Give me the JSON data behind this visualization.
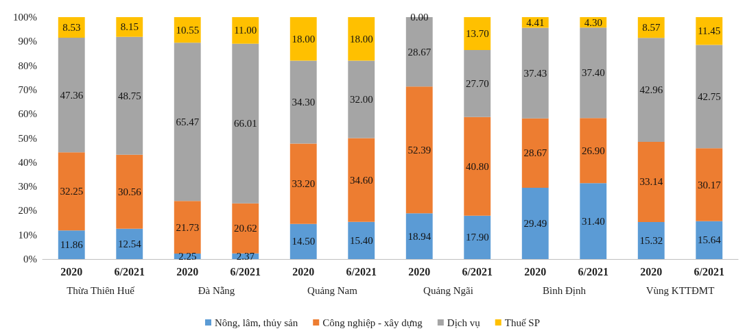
{
  "chart_data": {
    "type": "bar",
    "stacked": true,
    "categories": [
      "2020",
      "6/2021",
      "2020",
      "6/2021",
      "2020",
      "6/2021",
      "2020",
      "6/2021",
      "2020",
      "6/2021",
      "2020",
      "6/2021"
    ],
    "annotations": [
      "Thừa Thiên Huế",
      "Đà Nẵng",
      "Quảng Nam",
      "Quảng Ngãi",
      "Bình Định",
      "Vùng KTTĐMT"
    ],
    "ylim": [
      0,
      100
    ],
    "yticks": [
      {
        "value": 0,
        "label": "0%"
      },
      {
        "value": 10,
        "label": "10%"
      },
      {
        "value": 20,
        "label": "20%"
      },
      {
        "value": 30,
        "label": "30%"
      },
      {
        "value": 40,
        "label": "40%"
      },
      {
        "value": 50,
        "label": "50%"
      },
      {
        "value": 60,
        "label": "60%"
      },
      {
        "value": 70,
        "label": "70%"
      },
      {
        "value": 80,
        "label": "80%"
      },
      {
        "value": 90,
        "label": "90%"
      },
      {
        "value": 100,
        "label": "100%"
      }
    ],
    "grid": false,
    "legend": "bottom",
    "series": [
      {
        "name": "Nông, lâm, thủy sản",
        "color": "#5b9bd5",
        "values": [
          11.86,
          12.54,
          2.25,
          2.37,
          14.5,
          15.4,
          18.94,
          17.9,
          29.49,
          31.4,
          15.32,
          15.64
        ],
        "value_labels": [
          "11.86",
          "12.54",
          "2.25",
          "2.37",
          "14.50",
          "15.40",
          "18.94",
          "17.90",
          "29.49",
          "31.40",
          "15.32",
          "15.64"
        ]
      },
      {
        "name": "Công nghiệp - xây dựng",
        "color": "#ed7d31",
        "values": [
          32.25,
          30.56,
          21.73,
          20.62,
          33.2,
          34.6,
          52.39,
          40.8,
          28.67,
          26.9,
          33.14,
          30.17
        ],
        "value_labels": [
          "32.25",
          "30.56",
          "21.73",
          "20.62",
          "33.20",
          "34.60",
          "52.39",
          "40.80",
          "28.67",
          "26.90",
          "33.14",
          "30.17"
        ]
      },
      {
        "name": "Dịch vụ",
        "color": "#a5a5a5",
        "values": [
          47.36,
          48.75,
          65.47,
          66.01,
          34.3,
          32,
          28.67,
          27.7,
          37.43,
          37.4,
          42.96,
          42.75
        ],
        "value_labels": [
          "47.36",
          "48.75",
          "65.47",
          "66.01",
          "34.30",
          "32.00",
          "28.67",
          "27.70",
          "37.43",
          "37.40",
          "42.96",
          "42.75"
        ]
      },
      {
        "name": "Thuế SP",
        "color": "#ffc000",
        "values": [
          8.53,
          8.15,
          10.55,
          11,
          18,
          18,
          0,
          13.7,
          4.41,
          4.3,
          8.57,
          11.45
        ],
        "value_labels": [
          "8.53",
          "8.15",
          "10.55",
          "11.00",
          "18.00",
          "18.00",
          "0.00",
          "13.70",
          "4.41",
          "4.30",
          "8.57",
          "11.45"
        ]
      }
    ]
  }
}
